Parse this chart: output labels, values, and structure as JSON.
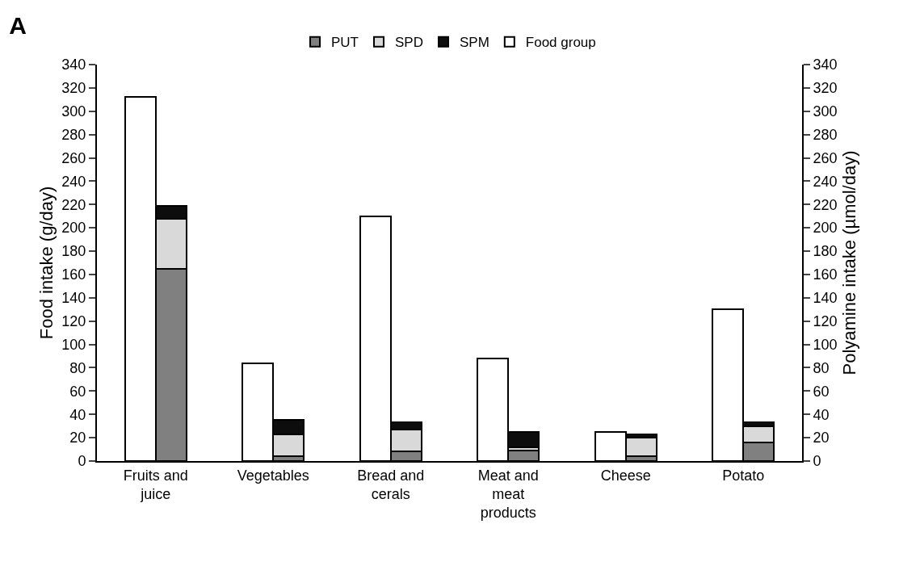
{
  "chart_data": {
    "type": "bar",
    "title": "A",
    "ylabel": "Food intake (g/day)",
    "y2label": "Polyamine intake (µmol/day)",
    "categories": [
      "Fruits and juice",
      "Vegetables",
      "Bread and cerals",
      "Meat and meat products",
      "Cheese",
      "Potato"
    ],
    "series": [
      {
        "name": "PUT",
        "color": "#808080",
        "axis": "y2",
        "values": [
          165,
          4,
          8,
          9,
          4,
          16
        ]
      },
      {
        "name": "SPD",
        "color": "#d9d9d9",
        "axis": "y2",
        "values": [
          43,
          19,
          19,
          3,
          16,
          14
        ]
      },
      {
        "name": "SPM",
        "color": "#0d0d0d",
        "axis": "y2",
        "values": [
          11,
          12,
          6,
          13,
          3,
          3
        ]
      },
      {
        "name": "Food group",
        "color": "#ffffff",
        "axis": "y",
        "values": [
          312,
          84,
          210,
          88,
          25,
          130
        ]
      }
    ],
    "stacked": true,
    "grid": false,
    "legend": "top",
    "ylim": [
      0,
      340
    ],
    "yticks": [
      0,
      20,
      40,
      60,
      80,
      100,
      120,
      140,
      160,
      180,
      200,
      220,
      240,
      260,
      280,
      300,
      320,
      340
    ],
    "y2lim": [
      0,
      340
    ],
    "y2ticks": [
      0,
      20,
      40,
      60,
      80,
      100,
      120,
      140,
      160,
      180,
      200,
      220,
      240,
      260,
      280,
      300,
      320,
      340
    ]
  }
}
